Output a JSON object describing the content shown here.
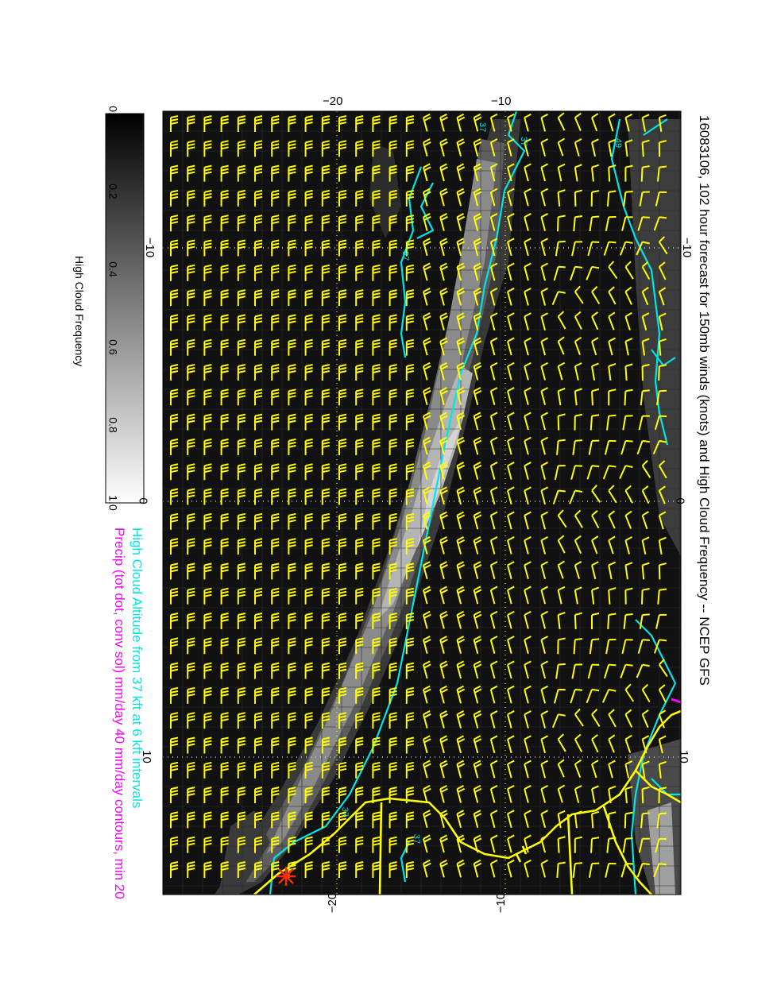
{
  "title": "16083106, 102 hour forecast for 150mb winds (knots) and High Cloud Frequency -- NCEP GFS",
  "subtitle_cyan": "High Cloud Altitude from 37 kft at 6 kft intervals",
  "subtitle_magenta": "Precip (tot dot, conv sol) mm/day 40 mm/day contours, min 20",
  "colorbar": {
    "label": "High Cloud Frequency",
    "ticks": [
      "0.0",
      "0.2",
      "0.4",
      "0.6",
      "0.8",
      "1.0"
    ]
  },
  "axes": {
    "top_ticks": [
      "−20",
      "−10"
    ],
    "bottom_ticks": [
      "−20",
      "−10"
    ],
    "left_ticks": [
      "−10",
      "0",
      "10"
    ],
    "right_ticks": [
      "−10",
      "0",
      "10"
    ]
  },
  "contour_labels": [
    "37",
    "37",
    "37",
    "37",
    "37",
    "49"
  ],
  "colors": {
    "background": "#111111",
    "wind_barbs": "#ffff00",
    "coastline": "#ffff00",
    "contours": "#00e5e5",
    "precip": "#ff00ff",
    "marker": "#ff2a00",
    "title_cyan": "#00e5e5",
    "title_magenta": "#ff00ff"
  }
}
